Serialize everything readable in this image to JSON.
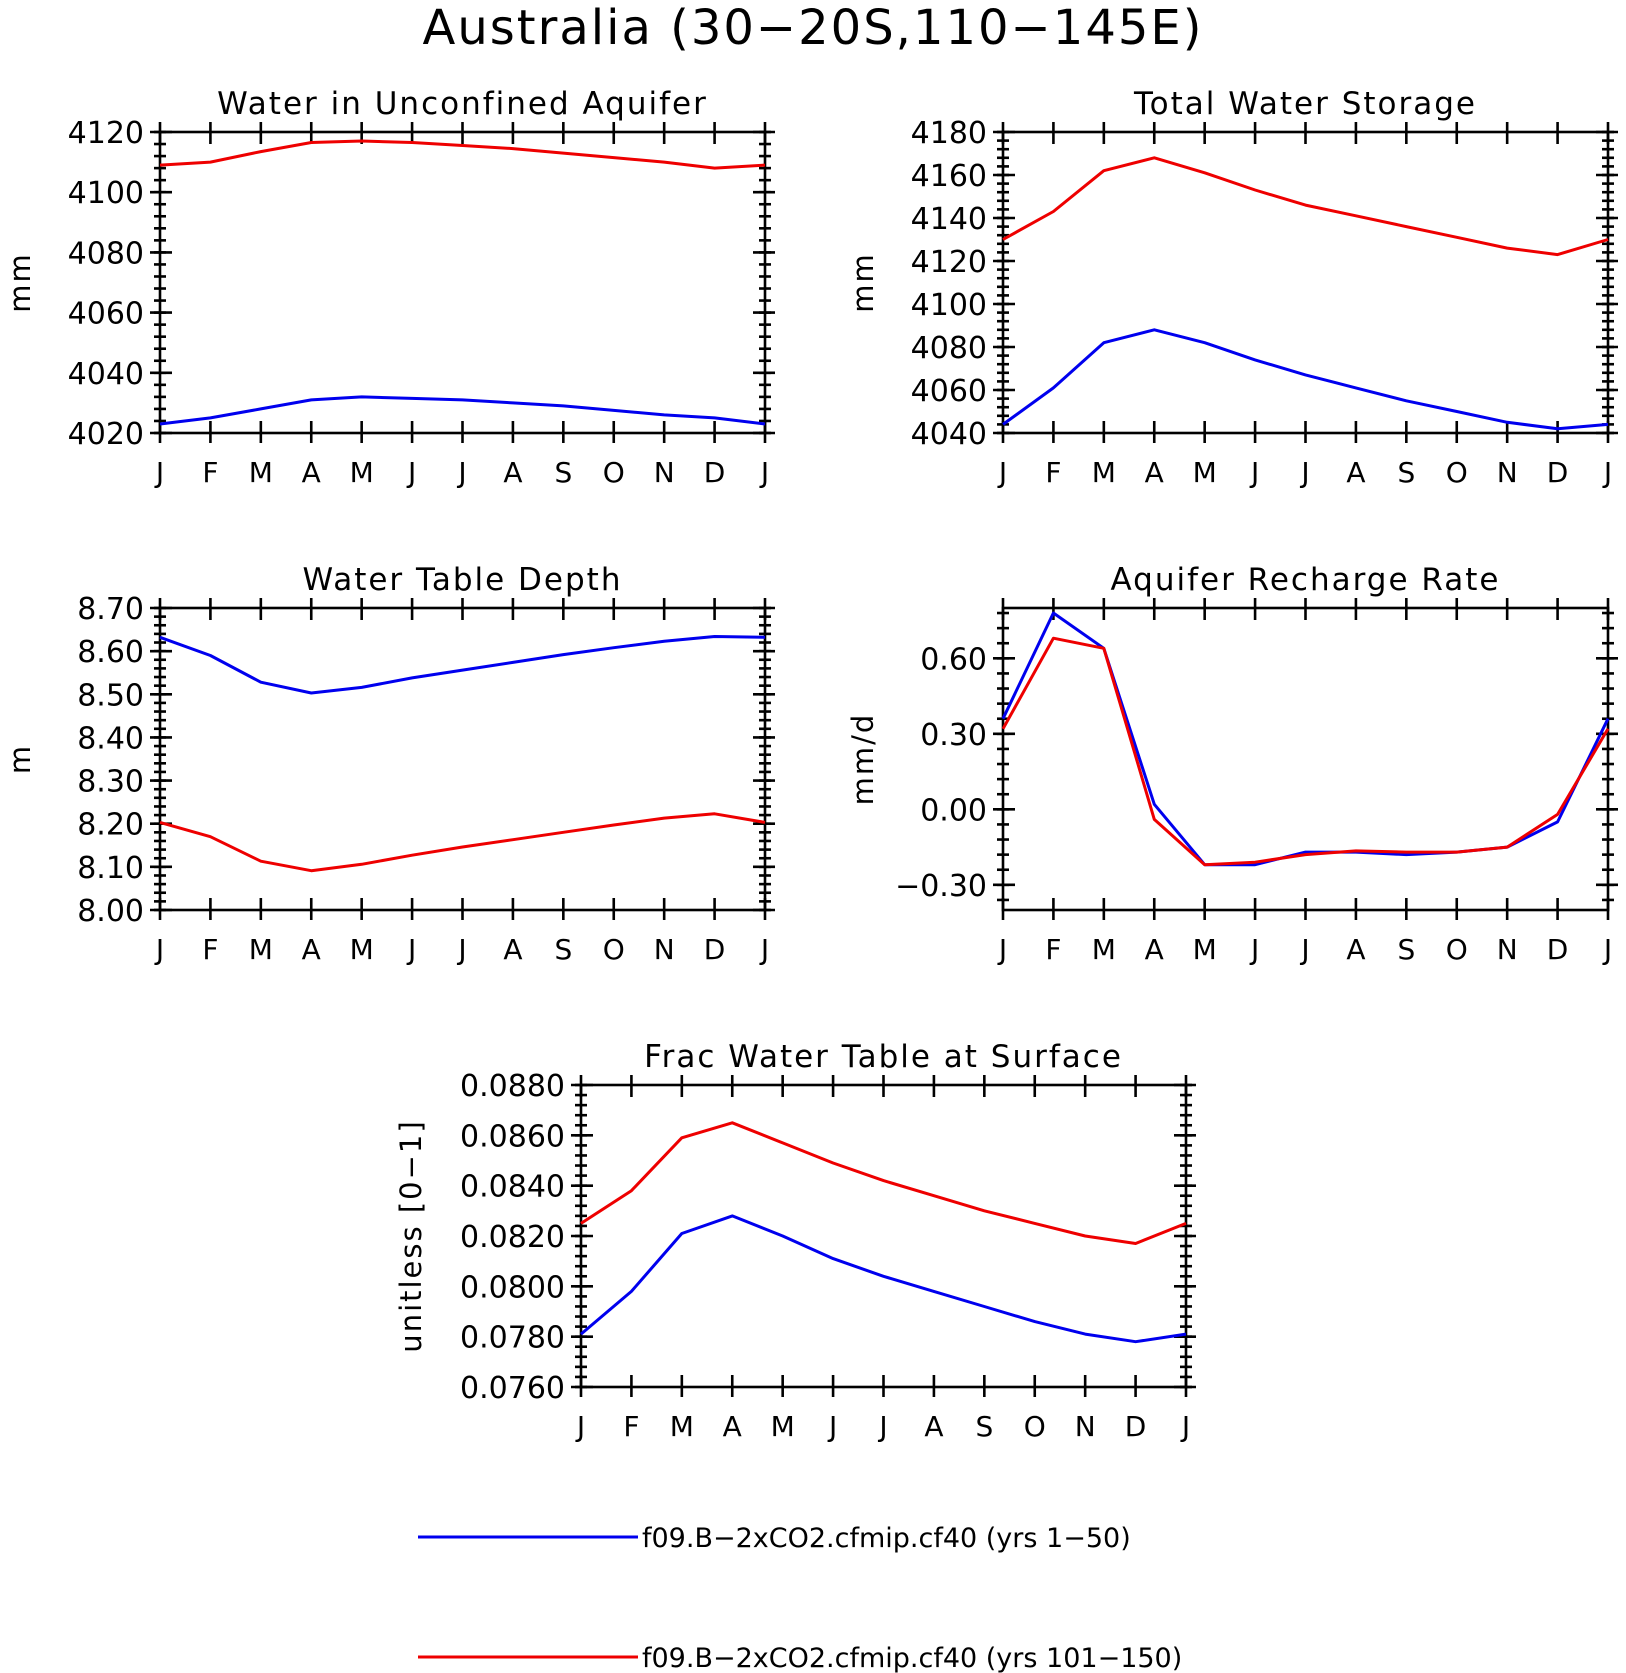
{
  "figure_title": "Australia (30−20S,110−145E)",
  "colors": {
    "blue": "#0000ee",
    "red": "#ee0000",
    "axis": "#000000"
  },
  "months": [
    "J",
    "F",
    "M",
    "A",
    "M",
    "J",
    "J",
    "A",
    "S",
    "O",
    "N",
    "D",
    "J"
  ],
  "legend": [
    {
      "label": "f09.B−2xCO2.cfmip.cf40 (yrs 1−50)",
      "color": "#0000ee"
    },
    {
      "label": "f09.B−2xCO2.cfmip.cf40 (yrs 101−150)",
      "color": "#ee0000"
    }
  ],
  "chart_data": [
    {
      "type": "line",
      "title": "Water in Unconfined Aquifer",
      "ylabel": "mm",
      "ylim": [
        4020,
        4120
      ],
      "yticks": [
        "4020",
        "4040",
        "4060",
        "4080",
        "4100",
        "4120"
      ],
      "series": [
        {
          "color": "#0000ee",
          "values": [
            4023,
            4025,
            4028,
            4031,
            4032,
            4031.5,
            4031,
            4030,
            4029,
            4027.5,
            4026,
            4025,
            4023
          ]
        },
        {
          "color": "#ee0000",
          "values": [
            4109,
            4110,
            4113.5,
            4116.5,
            4117,
            4116.5,
            4115.5,
            4114.5,
            4113,
            4111.5,
            4110,
            4108,
            4109
          ]
        }
      ]
    },
    {
      "type": "line",
      "title": "Total Water Storage",
      "ylabel": "mm",
      "ylim": [
        4040,
        4180
      ],
      "yticks": [
        "4040",
        "4060",
        "4080",
        "4100",
        "4120",
        "4140",
        "4160",
        "4180"
      ],
      "series": [
        {
          "color": "#0000ee",
          "values": [
            4044,
            4061,
            4082,
            4088,
            4082,
            4074,
            4067,
            4061,
            4055,
            4050,
            4045,
            4042,
            4044
          ]
        },
        {
          "color": "#ee0000",
          "values": [
            4130,
            4143,
            4162,
            4168,
            4161,
            4153,
            4146,
            4141,
            4136,
            4131,
            4126,
            4123,
            4130
          ]
        }
      ]
    },
    {
      "type": "line",
      "title": "Water Table Depth",
      "ylabel": "m",
      "ylim": [
        8.0,
        8.7
      ],
      "yticks": [
        "8.00",
        "8.10",
        "8.20",
        "8.30",
        "8.40",
        "8.50",
        "8.60",
        "8.70"
      ],
      "series": [
        {
          "color": "#0000ee",
          "values": [
            8.632,
            8.59,
            8.528,
            8.503,
            8.516,
            8.538,
            8.556,
            8.574,
            8.592,
            8.608,
            8.623,
            8.634,
            8.632
          ]
        },
        {
          "color": "#ee0000",
          "values": [
            8.203,
            8.17,
            8.113,
            8.091,
            8.106,
            8.127,
            8.146,
            8.163,
            8.18,
            8.197,
            8.213,
            8.223,
            8.203
          ]
        }
      ]
    },
    {
      "type": "line",
      "title": "Aquifer Recharge Rate",
      "ylabel": "mm/d",
      "ylim": [
        -0.4,
        0.8
      ],
      "yticks": [
        "−0.30",
        "0.00",
        "0.30",
        "0.60"
      ],
      "ytick_values": [
        -0.3,
        0.0,
        0.3,
        0.6
      ],
      "series": [
        {
          "color": "#0000ee",
          "values": [
            0.36,
            0.78,
            0.64,
            0.02,
            -0.22,
            -0.22,
            -0.17,
            -0.17,
            -0.18,
            -0.17,
            -0.15,
            -0.05,
            0.36
          ]
        },
        {
          "color": "#ee0000",
          "values": [
            0.32,
            0.68,
            0.64,
            -0.04,
            -0.22,
            -0.21,
            -0.18,
            -0.165,
            -0.17,
            -0.17,
            -0.15,
            -0.02,
            0.32
          ]
        }
      ]
    },
    {
      "type": "line",
      "title": "Frac Water Table at Surface",
      "ylabel": "unitless [0−1]",
      "ylim": [
        0.076,
        0.088
      ],
      "yticks": [
        "0.0760",
        "0.0780",
        "0.0800",
        "0.0820",
        "0.0840",
        "0.0860",
        "0.0880"
      ],
      "series": [
        {
          "color": "#0000ee",
          "values": [
            0.0781,
            0.0798,
            0.0821,
            0.0828,
            0.082,
            0.0811,
            0.0804,
            0.0798,
            0.0792,
            0.0786,
            0.0781,
            0.0778,
            0.0781
          ]
        },
        {
          "color": "#ee0000",
          "values": [
            0.0825,
            0.0838,
            0.0859,
            0.0865,
            0.0857,
            0.0849,
            0.0842,
            0.0836,
            0.083,
            0.0825,
            0.082,
            0.0817,
            0.0825
          ]
        }
      ]
    }
  ]
}
